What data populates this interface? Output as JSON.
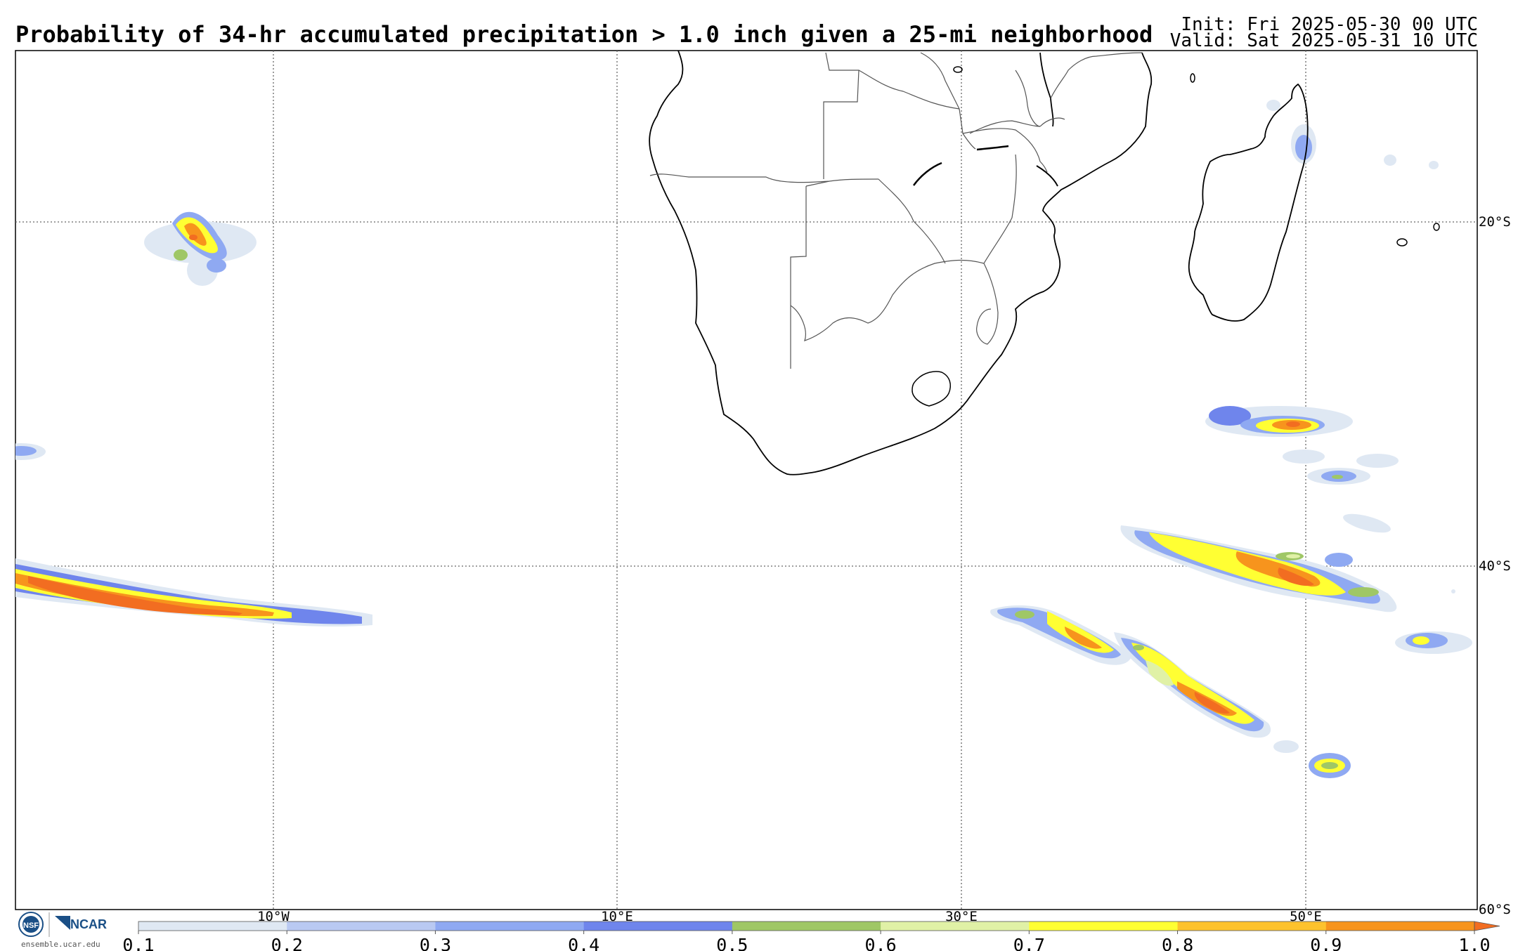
{
  "header": {
    "title": "Probability of 34-hr accumulated precipitation > 1.0 inch given a 25-mi neighborhood",
    "init": "Init: Fri 2025-05-30 00 UTC",
    "valid": "Valid: Sat 2025-05-31 10 UTC"
  },
  "map": {
    "lat_labels": [
      "20°S",
      "40°S",
      "60°S"
    ],
    "lon_labels": [
      "10°W",
      "10°E",
      "30°E",
      "50°E"
    ],
    "grid": "dotted",
    "region": "Southern Africa and South Atlantic / Indian Ocean"
  },
  "colorbar": {
    "ticks": [
      "0.1",
      "0.2",
      "0.3",
      "0.4",
      "0.5",
      "0.6",
      "0.7",
      "0.8",
      "0.9",
      "1.0"
    ],
    "colors": [
      "#dfe8f3",
      "#b9c9f2",
      "#8fa9f2",
      "#6f85ec",
      "#9fc766",
      "#e0f1a6",
      "#ffff33",
      "#fdc22d",
      "#f7941d"
    ],
    "extend_color": "#f26d21"
  },
  "logos": {
    "nsf": "NSF",
    "ncar": "NCAR",
    "url": "ensemble.ucar.edu"
  }
}
